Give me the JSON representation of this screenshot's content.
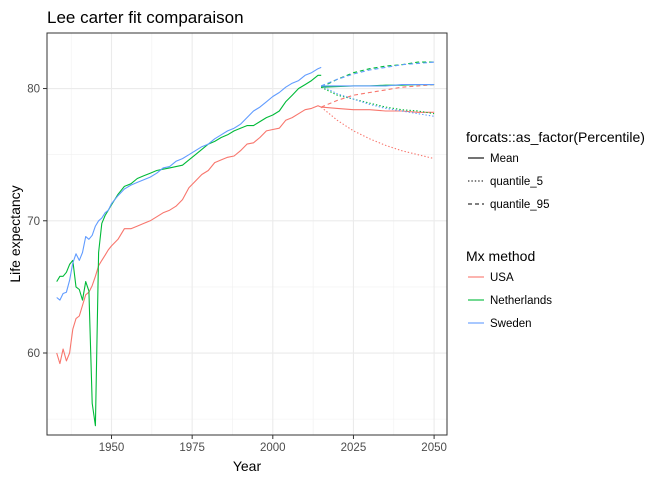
{
  "chart_data": {
    "type": "line",
    "title": "Lee carter fit comparaison",
    "xlabel": "Year",
    "ylabel": "Life expectancy",
    "xlim": [
      1930,
      2054
    ],
    "ylim": [
      53.8,
      84.2
    ],
    "xticks": [
      1950,
      1975,
      2000,
      2025,
      2050
    ],
    "yticks": [
      60,
      70,
      80
    ],
    "grid": true,
    "legend_position": "right",
    "legends": [
      {
        "title": "forcats::as_factor(Percentile)",
        "entries": [
          {
            "label": "Mean",
            "dash": "solid"
          },
          {
            "label": "quantile_5",
            "dash": "dotted"
          },
          {
            "label": "quantile_95",
            "dash": "dashed"
          }
        ]
      },
      {
        "title": "Mx method",
        "entries": [
          {
            "label": "USA",
            "color": "#F8766D"
          },
          {
            "label": "Netherlands",
            "color": "#00BA38"
          },
          {
            "label": "Sweden",
            "color": "#619CFF"
          }
        ]
      }
    ],
    "series": [
      {
        "name": "USA",
        "percentile": "Mean",
        "color": "#F8766D",
        "dash": "solid",
        "x": [
          1933,
          1934,
          1935,
          1936,
          1937,
          1938,
          1939,
          1940,
          1941,
          1942,
          1943,
          1944,
          1945,
          1946,
          1947,
          1948,
          1949,
          1950,
          1952,
          1954,
          1956,
          1958,
          1960,
          1962,
          1964,
          1966,
          1968,
          1970,
          1972,
          1974,
          1976,
          1978,
          1980,
          1982,
          1984,
          1986,
          1988,
          1990,
          1992,
          1994,
          1996,
          1998,
          2000,
          2002,
          2004,
          2006,
          2008,
          2010,
          2012,
          2014,
          2015
        ],
        "y": [
          60.0,
          59.2,
          60.3,
          59.4,
          60.0,
          61.8,
          62.6,
          62.8,
          63.6,
          64.4,
          64.6,
          65.1,
          65.8,
          66.6,
          67.0,
          67.4,
          67.8,
          68.1,
          68.6,
          69.4,
          69.4,
          69.6,
          69.8,
          70.0,
          70.3,
          70.6,
          70.8,
          71.1,
          71.6,
          72.5,
          73.0,
          73.5,
          73.8,
          74.4,
          74.6,
          74.8,
          74.9,
          75.3,
          75.8,
          75.9,
          76.3,
          76.8,
          76.9,
          77.0,
          77.6,
          77.8,
          78.1,
          78.4,
          78.5,
          78.7,
          78.6
        ]
      },
      {
        "name": "Netherlands",
        "percentile": "Mean",
        "color": "#00BA38",
        "dash": "solid",
        "x": [
          1933,
          1934,
          1935,
          1936,
          1937,
          1938,
          1939,
          1940,
          1941,
          1942,
          1943,
          1944,
          1945,
          1946,
          1947,
          1948,
          1949,
          1950,
          1952,
          1954,
          1956,
          1958,
          1960,
          1962,
          1964,
          1966,
          1968,
          1970,
          1972,
          1974,
          1976,
          1978,
          1980,
          1982,
          1984,
          1986,
          1988,
          1990,
          1992,
          1994,
          1996,
          1998,
          2000,
          2002,
          2004,
          2006,
          2008,
          2010,
          2012,
          2014,
          2015
        ],
        "y": [
          65.4,
          65.8,
          65.8,
          66.1,
          66.7,
          67.0,
          65.0,
          64.8,
          64.0,
          65.4,
          64.7,
          56.2,
          54.5,
          67.6,
          69.8,
          70.4,
          70.8,
          71.2,
          72.0,
          72.6,
          72.8,
          73.2,
          73.4,
          73.6,
          73.8,
          73.9,
          74.0,
          74.1,
          74.2,
          74.6,
          75.0,
          75.4,
          75.8,
          76.0,
          76.3,
          76.5,
          76.8,
          77.0,
          77.2,
          77.2,
          77.5,
          77.8,
          78.0,
          78.3,
          79.0,
          79.5,
          80.0,
          80.3,
          80.6,
          81.0,
          81.0
        ]
      },
      {
        "name": "Sweden",
        "percentile": "Mean",
        "color": "#619CFF",
        "dash": "solid",
        "x": [
          1933,
          1934,
          1935,
          1936,
          1937,
          1938,
          1939,
          1940,
          1941,
          1942,
          1943,
          1944,
          1945,
          1946,
          1947,
          1948,
          1949,
          1950,
          1952,
          1954,
          1956,
          1958,
          1960,
          1962,
          1964,
          1966,
          1968,
          1970,
          1972,
          1974,
          1976,
          1978,
          1980,
          1982,
          1984,
          1986,
          1988,
          1990,
          1992,
          1994,
          1996,
          1998,
          2000,
          2002,
          2004,
          2006,
          2008,
          2010,
          2012,
          2014,
          2015
        ],
        "y": [
          64.2,
          64.0,
          64.5,
          64.6,
          65.5,
          66.8,
          67.5,
          67.0,
          67.6,
          68.8,
          68.6,
          68.9,
          69.6,
          70.0,
          70.2,
          70.6,
          70.8,
          71.3,
          71.9,
          72.4,
          72.7,
          72.9,
          73.1,
          73.3,
          73.6,
          74.0,
          74.1,
          74.5,
          74.7,
          75.0,
          75.3,
          75.6,
          75.8,
          76.2,
          76.5,
          76.8,
          77.0,
          77.3,
          77.8,
          78.3,
          78.6,
          79.0,
          79.4,
          79.7,
          80.1,
          80.4,
          80.6,
          81.0,
          81.2,
          81.5,
          81.6
        ]
      },
      {
        "name": "USA",
        "percentile": "Mean",
        "color": "#F8766D",
        "dash": "solid",
        "x": [
          2015,
          2020,
          2025,
          2030,
          2035,
          2040,
          2045,
          2050
        ],
        "y": [
          78.6,
          78.5,
          78.4,
          78.4,
          78.3,
          78.3,
          78.2,
          78.2
        ]
      },
      {
        "name": "USA",
        "percentile": "quantile_5",
        "color": "#F8766D",
        "dash": "dotted",
        "x": [
          2015,
          2020,
          2025,
          2030,
          2035,
          2040,
          2045,
          2050
        ],
        "y": [
          78.6,
          77.6,
          76.8,
          76.2,
          75.7,
          75.3,
          75.0,
          74.7
        ]
      },
      {
        "name": "USA",
        "percentile": "quantile_95",
        "color": "#F8766D",
        "dash": "dashed",
        "x": [
          2015,
          2020,
          2025,
          2030,
          2035,
          2040,
          2045,
          2050
        ],
        "y": [
          78.6,
          79.1,
          79.5,
          79.7,
          79.9,
          80.1,
          80.2,
          80.3
        ]
      },
      {
        "name": "Netherlands",
        "percentile": "Mean",
        "color": "#00BA38",
        "dash": "solid",
        "x": [
          2015,
          2020,
          2025,
          2030,
          2035,
          2040,
          2045,
          2050
        ],
        "y": [
          80.1,
          80.15,
          80.2,
          80.2,
          80.25,
          80.25,
          80.3,
          80.3
        ]
      },
      {
        "name": "Netherlands",
        "percentile": "quantile_5",
        "color": "#00BA38",
        "dash": "dotted",
        "x": [
          2015,
          2020,
          2025,
          2030,
          2035,
          2040,
          2045,
          2050
        ],
        "y": [
          80.1,
          79.5,
          79.2,
          78.9,
          78.6,
          78.4,
          78.3,
          78.1
        ]
      },
      {
        "name": "Netherlands",
        "percentile": "quantile_95",
        "color": "#00BA38",
        "dash": "dashed",
        "x": [
          2015,
          2020,
          2025,
          2030,
          2035,
          2040,
          2045,
          2050
        ],
        "y": [
          80.1,
          80.7,
          81.2,
          81.5,
          81.7,
          81.8,
          82.0,
          82.0
        ]
      },
      {
        "name": "Sweden",
        "percentile": "Mean",
        "color": "#619CFF",
        "dash": "solid",
        "x": [
          2015,
          2020,
          2025,
          2030,
          2035,
          2040,
          2045,
          2050
        ],
        "y": [
          80.2,
          80.2,
          80.2,
          80.2,
          80.2,
          80.3,
          80.3,
          80.3
        ]
      },
      {
        "name": "Sweden",
        "percentile": "quantile_5",
        "color": "#619CFF",
        "dash": "dotted",
        "x": [
          2015,
          2020,
          2025,
          2030,
          2035,
          2040,
          2045,
          2050
        ],
        "y": [
          80.2,
          79.6,
          79.2,
          78.8,
          78.5,
          78.3,
          78.1,
          77.9
        ]
      },
      {
        "name": "Sweden",
        "percentile": "quantile_95",
        "color": "#619CFF",
        "dash": "dashed",
        "x": [
          2015,
          2020,
          2025,
          2030,
          2035,
          2040,
          2045,
          2050
        ],
        "y": [
          80.2,
          80.7,
          81.1,
          81.4,
          81.6,
          81.8,
          81.9,
          82.0
        ]
      }
    ]
  }
}
